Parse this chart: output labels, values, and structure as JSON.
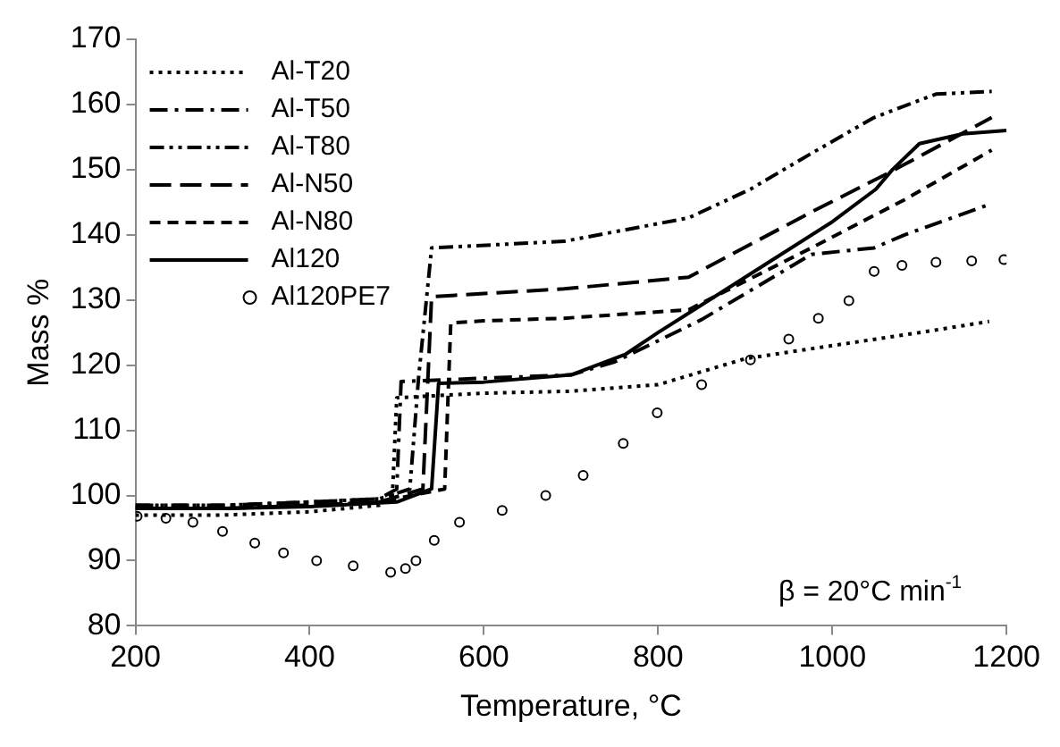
{
  "chart_data": {
    "type": "line",
    "xlabel": "Temperature, °C",
    "ylabel": "Mass %",
    "xlim": [
      200,
      1200
    ],
    "xticks": [
      200,
      400,
      600,
      800,
      1000,
      1200
    ],
    "ylim": [
      80,
      170
    ],
    "yticks": [
      80,
      90,
      100,
      110,
      120,
      130,
      140,
      150,
      160,
      170
    ],
    "grid": false,
    "legend": "top left",
    "annotations": [
      "β = 20°C min$^{-1}$"
    ],
    "series": [
      {
        "name": "Al-T20",
        "color": "#000000",
        "line_style": "dotted",
        "x": [
          200,
          300,
          400,
          480,
          495,
          500,
          600,
          700,
          800,
          900,
          1000,
          1100,
          1180
        ],
        "values": [
          97,
          97,
          97.5,
          98.5,
          100,
          115,
          115.7,
          116,
          117,
          121,
          123,
          125,
          126.7
        ]
      },
      {
        "name": "Al-T50",
        "color": "#000000",
        "line_style": "dashed",
        "x": [
          200,
          300,
          400,
          480,
          500,
          505,
          600,
          700,
          750,
          850,
          976,
          1048,
          1083,
          1183
        ],
        "values": [
          98.5,
          98.5,
          99,
          99.5,
          101,
          117.5,
          118,
          118.5,
          120.5,
          127,
          137,
          138,
          140,
          144.8
        ]
      },
      {
        "name": "Al-T80",
        "color": "#000000",
        "line_style": "dashed",
        "x": [
          200,
          300,
          400,
          480,
          515,
          525,
          540,
          692,
          835,
          906,
          976,
          1048,
          1119,
          1183
        ],
        "values": [
          98.5,
          98.5,
          99,
          99.5,
          101,
          118,
          138,
          139,
          142.6,
          147,
          152.5,
          158,
          161.6,
          162
        ]
      },
      {
        "name": "Al-N50",
        "color": "#000000",
        "line_style": "dashed",
        "x": [
          200,
          300,
          400,
          480,
          530,
          540,
          600,
          692,
          835,
          976,
          1069,
          1183
        ],
        "values": [
          98,
          98,
          98.5,
          99,
          101,
          130.5,
          131,
          131.7,
          133.5,
          143.5,
          149.8,
          158
        ]
      },
      {
        "name": "Al-N80",
        "color": "#000000",
        "line_style": "dashed",
        "x": [
          200,
          300,
          400,
          480,
          555,
          562,
          600,
          692,
          835,
          976,
          1083,
          1183
        ],
        "values": [
          98,
          98,
          98.5,
          99,
          101,
          126.5,
          126.8,
          127.2,
          128.5,
          138,
          145.4,
          153
        ]
      },
      {
        "name": "Al120",
        "color": "#000000",
        "line_style": "solid",
        "x": [
          200,
          300,
          400,
          500,
          540,
          548,
          600,
          700,
          763,
          800,
          900,
          1000,
          1050,
          1069,
          1100,
          1150,
          1200
        ],
        "values": [
          98,
          98,
          98.3,
          99,
          101,
          117.2,
          117.4,
          118.5,
          121.7,
          125,
          133.5,
          142,
          147,
          150,
          154,
          155.5,
          156
        ]
      },
      {
        "name": "Al120PE7",
        "color": "#000000",
        "type": "scatter",
        "marker": "circle",
        "x": [
          202,
          235,
          266,
          300,
          337,
          370,
          408,
          450,
          493,
          510,
          522,
          543,
          572,
          621,
          671,
          714,
          760,
          799,
          850,
          906,
          950,
          984,
          1019,
          1048,
          1080,
          1119,
          1160,
          1197
        ],
        "values": [
          96.8,
          96.5,
          95.9,
          94.5,
          92.7,
          91.2,
          90,
          89.2,
          88.2,
          88.8,
          90,
          93.1,
          95.9,
          97.7,
          100,
          103.1,
          108,
          112.7,
          117,
          120.8,
          124,
          127.2,
          129.9,
          134.4,
          135.3,
          135.8,
          136,
          136.2
        ]
      }
    ]
  }
}
